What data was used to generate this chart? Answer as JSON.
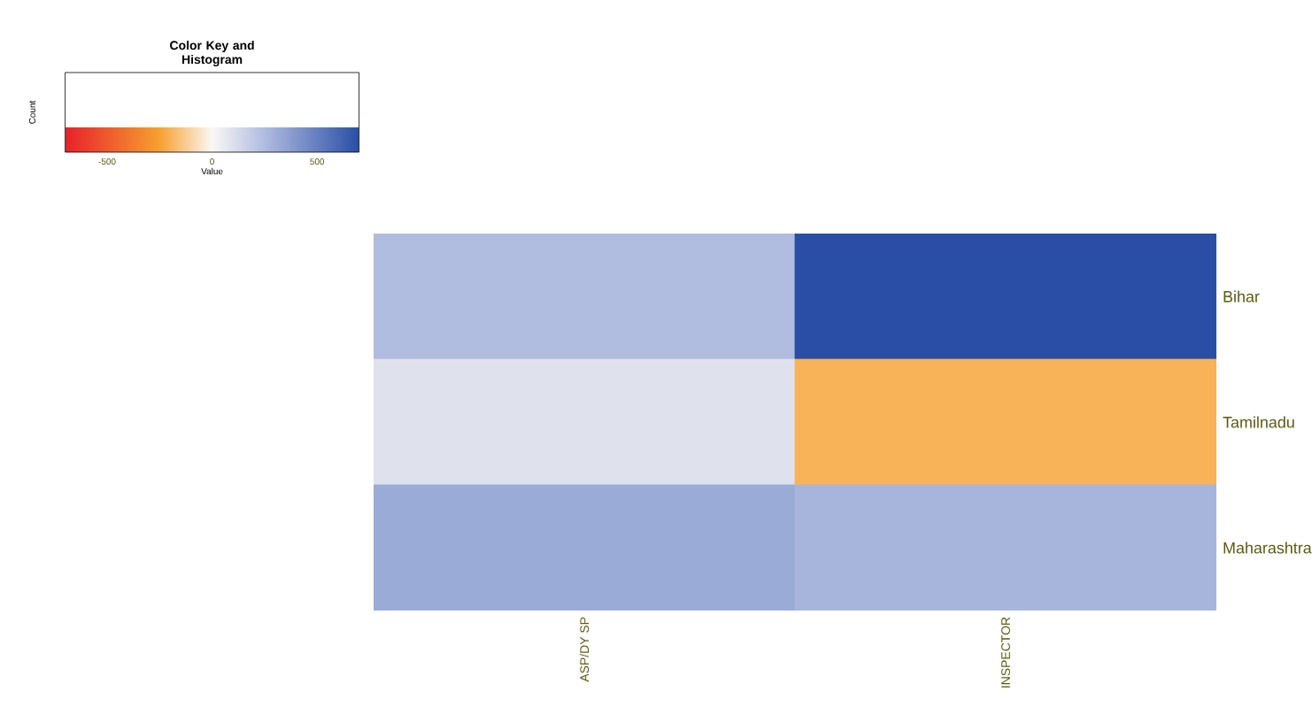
{
  "chart_data": {
    "type": "heatmap",
    "legend_title": "Color Key and Histogram",
    "clabel": "Value",
    "annotations": [
      "Count"
    ],
    "categories": [
      "ASP/DY SP",
      "INSPECTOR"
    ],
    "y_categories": [
      "Bihar",
      "Tamilnadu",
      "Maharashtra"
    ],
    "cells": [
      [
        250,
        700
      ],
      [
        90,
        -200
      ],
      [
        320,
        280
      ]
    ],
    "clim": [
      -700,
      700
    ],
    "cticks": [
      -500,
      0,
      500
    ]
  }
}
